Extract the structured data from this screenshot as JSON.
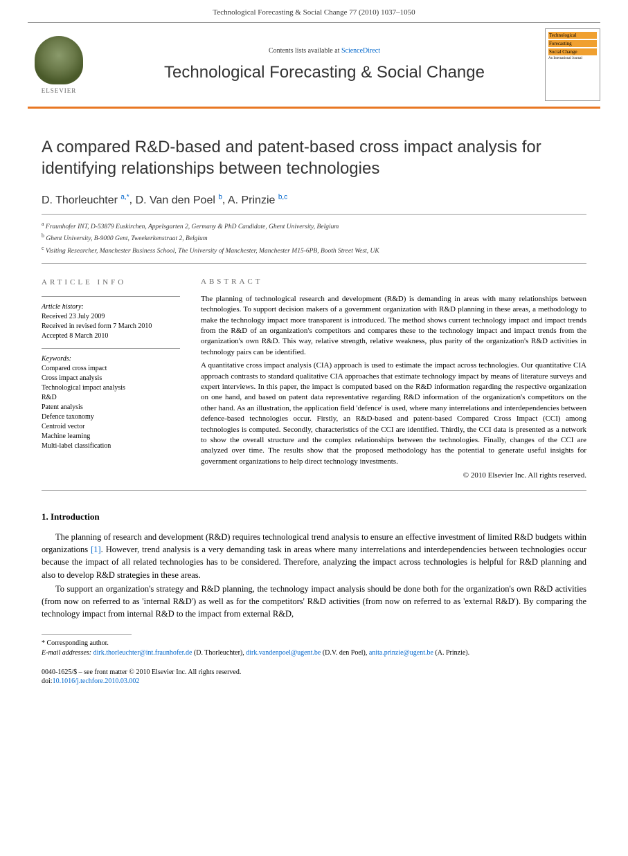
{
  "header_citation": "Technological Forecasting & Social Change 77 (2010) 1037–1050",
  "banner": {
    "contents_prefix": "Contents lists available at ",
    "contents_link": "ScienceDirect",
    "journal_name": "Technological Forecasting & Social Change",
    "elsevier": "ELSEVIER",
    "cover_line1": "Technological",
    "cover_line2": "Forecasting",
    "cover_line3": "Social Change",
    "cover_line4": "An International Journal"
  },
  "title": "A compared R&D-based and patent-based cross impact analysis for identifying relationships between technologies",
  "authors": [
    {
      "name": "D. Thorleuchter",
      "sup": "a,",
      "star": "*"
    },
    {
      "name": "D. Van den Poel",
      "sup": "b"
    },
    {
      "name": "A. Prinzie",
      "sup": "b,c"
    }
  ],
  "affiliations": [
    {
      "sup": "a",
      "text": "Fraunhofer INT, D-53879 Euskirchen, Appelsgarten 2, Germany & PhD Candidate, Ghent University, Belgium"
    },
    {
      "sup": "b",
      "text": "Ghent University, B-9000 Gent, Tweekerkenstraat 2, Belgium"
    },
    {
      "sup": "c",
      "text": "Visiting Researcher, Manchester Business School, The University of Manchester, Manchester M15-6PB, Booth Street West, UK"
    }
  ],
  "article_info_label": "ARTICLE INFO",
  "abstract_label": "ABSTRACT",
  "history": {
    "label": "Article history:",
    "received": "Received 23 July 2009",
    "revised": "Received in revised form 7 March 2010",
    "accepted": "Accepted 8 March 2010"
  },
  "keywords_label": "Keywords:",
  "keywords": [
    "Compared cross impact",
    "Cross impact analysis",
    "Technological impact analysis",
    "R&D",
    "Patent analysis",
    "Defence taxonomy",
    "Centroid vector",
    "Machine learning",
    "Multi-label classification"
  ],
  "abstract_paragraphs": [
    "The planning of technological research and development (R&D) is demanding in areas with many relationships between technologies. To support decision makers of a government organization with R&D planning in these areas, a methodology to make the technology impact more transparent is introduced. The method shows current technology impact and impact trends from the R&D of an organization's competitors and compares these to the technology impact and impact trends from the organization's own R&D. This way, relative strength, relative weakness, plus parity of the organization's R&D activities in technology pairs can be identified.",
    "A quantitative cross impact analysis (CIA) approach is used to estimate the impact across technologies. Our quantitative CIA approach contrasts to standard qualitative CIA approaches that estimate technology impact by means of literature surveys and expert interviews. In this paper, the impact is computed based on the R&D information regarding the respective organization on one hand, and based on patent data representative regarding R&D information of the organization's competitors on the other hand. As an illustration, the application field 'defence' is used, where many interrelations and interdependencies between defence-based technologies occur. Firstly, an R&D-based and patent-based Compared Cross Impact (CCI) among technologies is computed. Secondly, characteristics of the CCI are identified. Thirdly, the CCI data is presented as a network to show the overall structure and the complex relationships between the technologies. Finally, changes of the CCI are analyzed over time. The results show that the proposed methodology has the potential to generate useful insights for government organizations to help direct technology investments."
  ],
  "copyright": "© 2010 Elsevier Inc. All rights reserved.",
  "intro_heading": "1. Introduction",
  "intro_paragraphs": [
    {
      "pre": "The planning of research and development (R&D) requires technological trend analysis to ensure an effective investment of limited R&D budgets within organizations ",
      "cite": "[1]",
      "post": ". However, trend analysis is a very demanding task in areas where many interrelations and interdependencies between technologies occur because the impact of all related technologies has to be considered. Therefore, analyzing the impact across technologies is helpful for R&D planning and also to develop R&D strategies in these areas."
    },
    {
      "pre": "To support an organization's strategy and R&D planning, the technology impact analysis should be done both for the organization's own R&D activities (from now on referred to as 'internal R&D') as well as for the competitors' R&D activities (from now on referred to as 'external R&D'). By comparing the technology impact from internal R&D to the impact from external R&D,",
      "cite": "",
      "post": ""
    }
  ],
  "corresponding_label": "* Corresponding author.",
  "email_label": "E-mail addresses:",
  "emails": [
    {
      "addr": "dirk.thorleuchter@int.fraunhofer.de",
      "who": " (D. Thorleuchter), "
    },
    {
      "addr": "dirk.vandenpoel@ugent.be",
      "who": " (D.V. den Poel), "
    },
    {
      "addr": "anita.prinzie@ugent.be",
      "who": " (A. Prinzie)."
    }
  ],
  "frontmatter": "0040-1625/$ – see front matter © 2010 Elsevier Inc. All rights reserved.",
  "doi_prefix": "doi:",
  "doi": "10.1016/j.techfore.2010.03.002",
  "colors": {
    "accent": "#e87722",
    "link": "#0066cc"
  }
}
